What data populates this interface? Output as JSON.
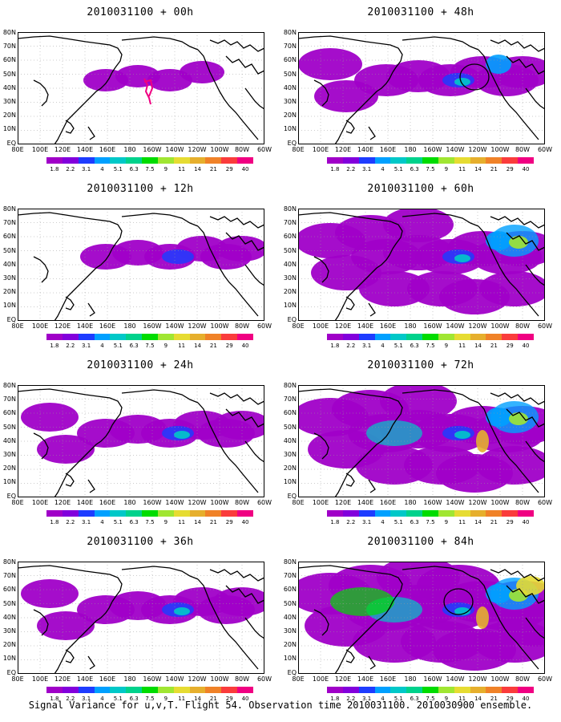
{
  "panels": [
    {
      "title": "2010031100 + 00h",
      "level": 1
    },
    {
      "title": "2010031100 + 48h",
      "level": 4
    },
    {
      "title": "2010031100 + 12h",
      "level": 2
    },
    {
      "title": "2010031100 + 60h",
      "level": 5
    },
    {
      "title": "2010031100 + 24h",
      "level": 3
    },
    {
      "title": "2010031100 + 72h",
      "level": 6
    },
    {
      "title": "2010031100 + 36h",
      "level": 3
    },
    {
      "title": "2010031100 + 84h",
      "level": 7
    }
  ],
  "lat_labels": [
    "80N",
    "70N",
    "60N",
    "50N",
    "40N",
    "30N",
    "20N",
    "10N",
    "EQ"
  ],
  "lon_labels": [
    "80E",
    "100E",
    "120E",
    "140E",
    "160E",
    "180",
    "160W",
    "140W",
    "120W",
    "100W",
    "80W",
    "60W"
  ],
  "colorbar": {
    "labels": [
      "1.8",
      "2.2",
      "3.1",
      "4",
      "5.1",
      "6.3",
      "7.5",
      "9",
      "11",
      "14",
      "21",
      "29",
      "40"
    ],
    "colors": [
      "#a000c8",
      "#8200dc",
      "#1e3cff",
      "#00a0ff",
      "#00c8c8",
      "#00d28c",
      "#00dc00",
      "#a0e632",
      "#e6dc32",
      "#e6af2d",
      "#f08228",
      "#fa3c3c",
      "#f00082"
    ]
  },
  "footer": "Signal Variance for u,v,T. Flight 54. Observation time 2010031100. 2010030900 ensemble."
}
